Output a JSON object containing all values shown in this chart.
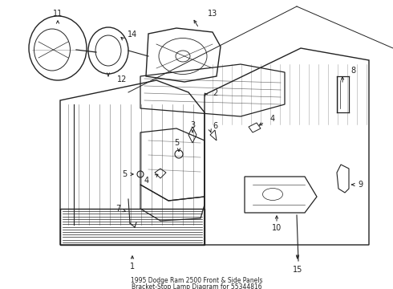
{
  "title_line1": "1995 Dodge Ram 2500 Front & Side Panels",
  "title_line2": "Bracket-Stop Lamp Diagram for 55344816",
  "bg": "#ffffff",
  "lc": "#222222",
  "fig_w": 4.9,
  "fig_h": 3.6,
  "dpi": 100
}
